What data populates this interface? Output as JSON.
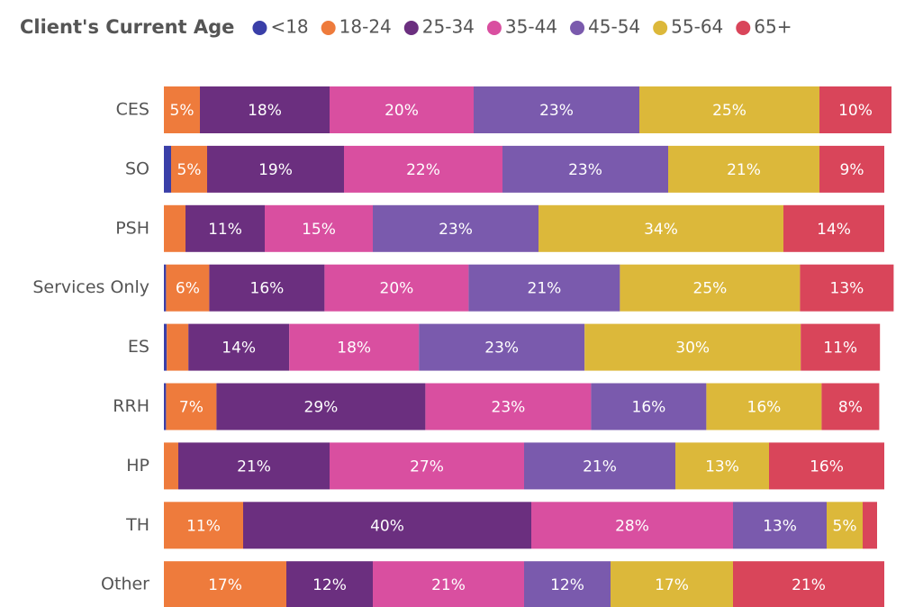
{
  "chart_data": {
    "type": "stacked-bar-horizontal",
    "title": "Client's Current Age",
    "categories": [
      "CES",
      "SO",
      "PSH",
      "Services Only",
      "ES",
      "RRH",
      "HP",
      "TH",
      "Other"
    ],
    "xlim": [
      0,
      100
    ],
    "series": [
      {
        "name": "<18",
        "color": "#3a3fa8",
        "values": [
          0,
          1,
          0,
          0.3,
          0.4,
          0.3,
          0,
          0,
          0
        ],
        "value_labels": [
          null,
          null,
          null,
          null,
          null,
          null,
          null,
          null,
          null
        ]
      },
      {
        "name": "18-24",
        "color": "#ee7b3c",
        "values": [
          5,
          5,
          3,
          6,
          3,
          7,
          2,
          11,
          17
        ],
        "value_labels": [
          "5%",
          "5%",
          null,
          "6%",
          null,
          "7%",
          null,
          "11%",
          "17%"
        ]
      },
      {
        "name": "25-34",
        "color": "#6b2f7f",
        "values": [
          18,
          19,
          11,
          16,
          14,
          29,
          21,
          40,
          12
        ],
        "value_labels": [
          "18%",
          "19%",
          "11%",
          "16%",
          "14%",
          "29%",
          "21%",
          "40%",
          "12%"
        ]
      },
      {
        "name": "35-44",
        "color": "#d94fa0",
        "values": [
          20,
          22,
          15,
          20,
          18,
          23,
          27,
          28,
          21
        ],
        "value_labels": [
          "20%",
          "22%",
          "15%",
          "20%",
          "18%",
          "23%",
          "27%",
          "28%",
          "21%"
        ]
      },
      {
        "name": "45-54",
        "color": "#7a5aad",
        "values": [
          23,
          23,
          23,
          21,
          23,
          16,
          21,
          13,
          12
        ],
        "value_labels": [
          "23%",
          "23%",
          "23%",
          "21%",
          "23%",
          "16%",
          "21%",
          "13%",
          "12%"
        ]
      },
      {
        "name": "55-64",
        "color": "#dcb83a",
        "values": [
          25,
          21,
          34,
          25,
          30,
          16,
          13,
          5,
          17
        ],
        "value_labels": [
          "25%",
          "21%",
          "34%",
          "25%",
          "30%",
          "16%",
          "13%",
          "5%",
          "17%"
        ]
      },
      {
        "name": "65+",
        "color": "#d9455a",
        "values": [
          10,
          9,
          14,
          13,
          11,
          8,
          16,
          2,
          21
        ],
        "value_labels": [
          "10%",
          "9%",
          "14%",
          "13%",
          "11%",
          "8%",
          "16%",
          null,
          "21%"
        ]
      }
    ]
  }
}
